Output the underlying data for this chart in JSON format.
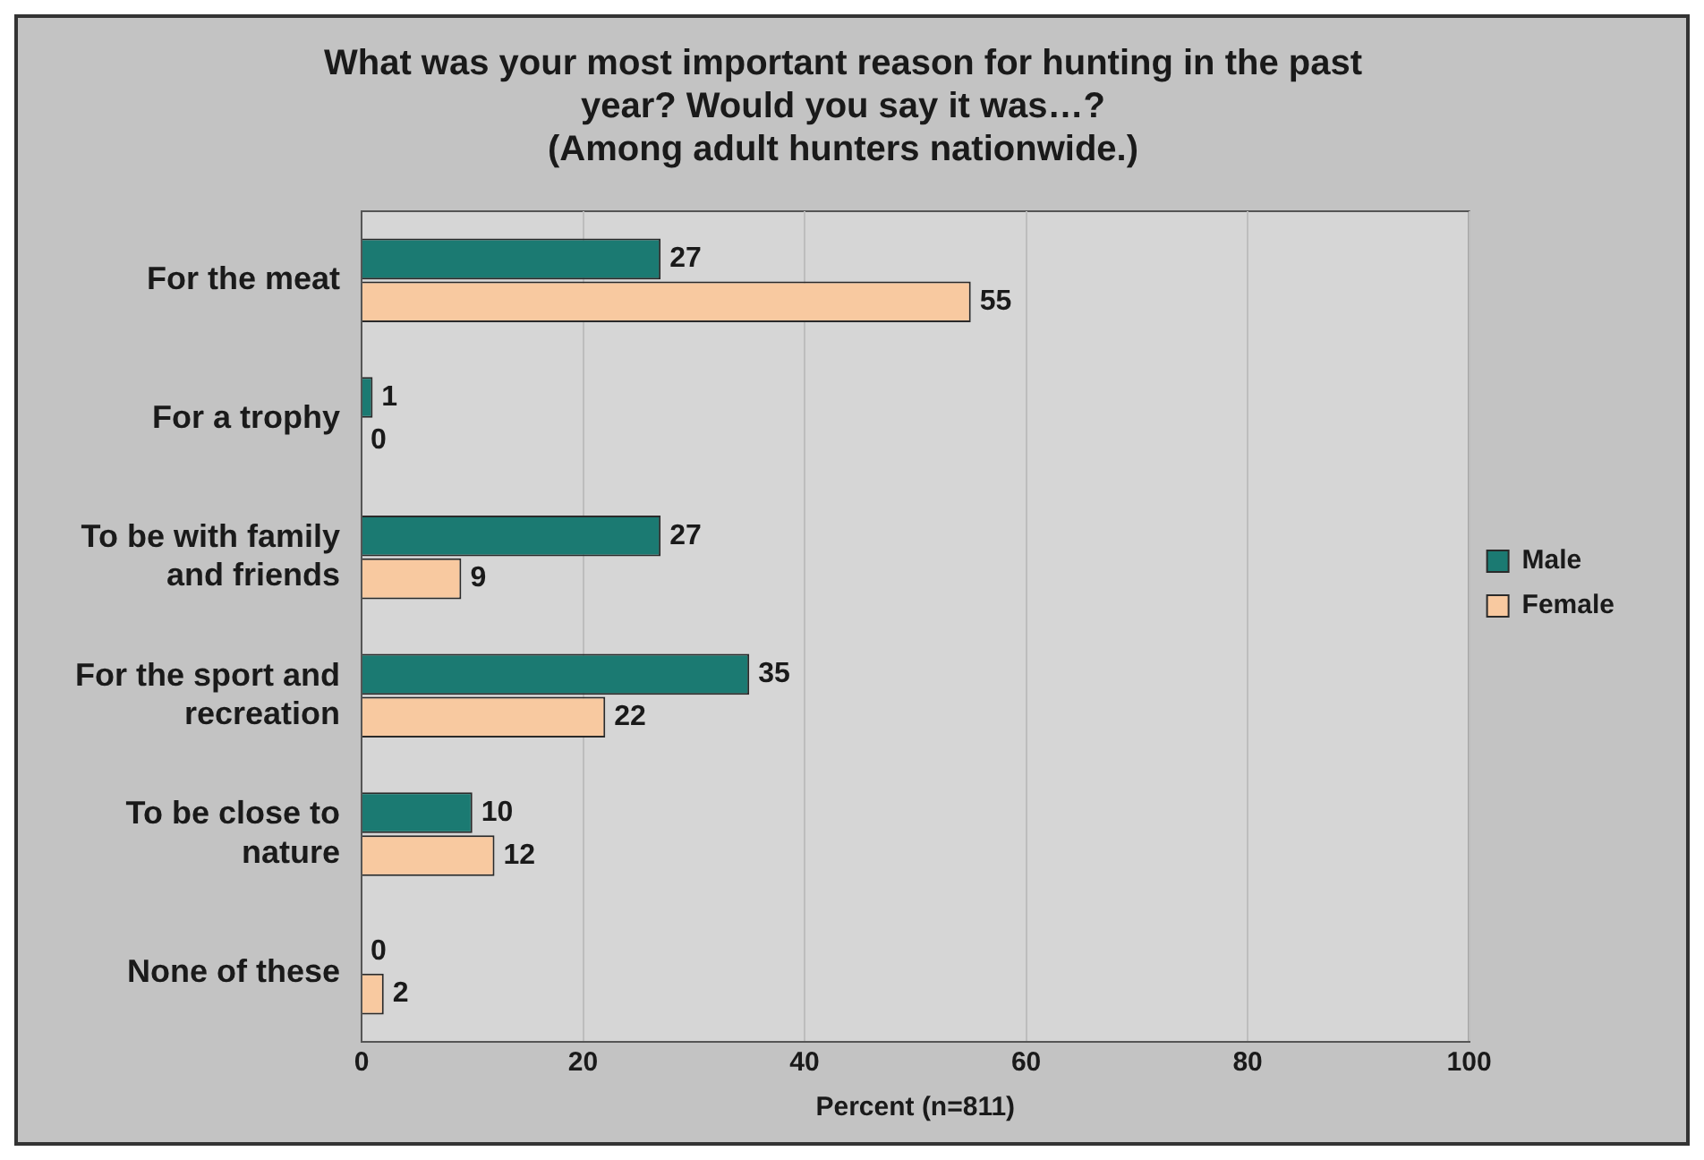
{
  "chart_data": {
    "type": "bar",
    "orientation": "horizontal",
    "title": "What was your most important reason for hunting in the past year? Would you say it was…?",
    "subtitle": "(Among adult hunters nationwide.)",
    "xlabel": "Percent (n=811)",
    "categories": [
      "For the meat",
      "For a trophy",
      "To be with family and friends",
      "For the sport and recreation",
      "To be close to nature",
      "None of these"
    ],
    "series": [
      {
        "name": "Male",
        "color": "#1b7a72",
        "values": [
          27,
          1,
          27,
          35,
          10,
          0
        ]
      },
      {
        "name": "Female",
        "color": "#f8c9a0",
        "values": [
          55,
          0,
          9,
          22,
          12,
          2
        ]
      }
    ],
    "xlim": [
      0,
      100
    ],
    "xticks": [
      0,
      20,
      40,
      60,
      80,
      100
    ],
    "grid": "x",
    "legend": "right",
    "data_labels": true
  }
}
